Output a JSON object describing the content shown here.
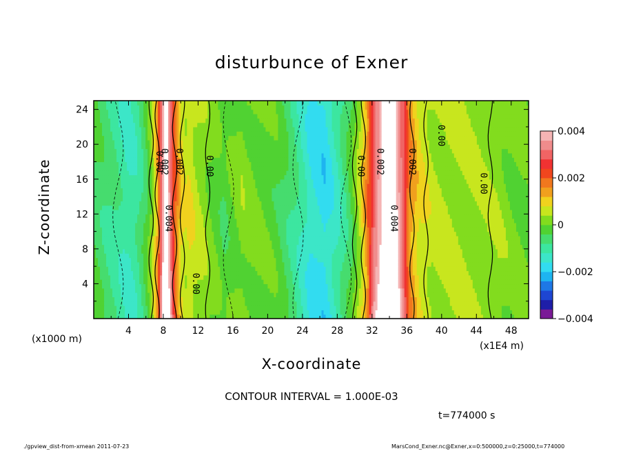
{
  "chart_data": {
    "type": "heatmap",
    "title": "disturbunce of Exner",
    "xlabel": "X-coordinate",
    "ylabel": "Z-coordinate",
    "x_unit_left": "(x1000 m)",
    "x_unit_right": "(x1E4 m)",
    "xlim": [
      0,
      50
    ],
    "ylim": [
      0,
      25
    ],
    "x_ticks": [
      "4",
      "8",
      "12",
      "16",
      "20",
      "24",
      "28",
      "32",
      "36",
      "40",
      "44",
      "48"
    ],
    "y_ticks": [
      "4",
      "8",
      "12",
      "16",
      "20",
      "24"
    ],
    "colorbar": {
      "range": [
        -0.004,
        0.004
      ],
      "tick_labels": [
        "0.004",
        "0.002",
        "0",
        "−0.002",
        "−0.004"
      ],
      "colors": [
        "#7a1a96",
        "#1e1ea8",
        "#1e46d2",
        "#1e78e6",
        "#1eb4f0",
        "#32dcf0",
        "#3ce6c8",
        "#3ce6a0",
        "#46dc6e",
        "#50d232",
        "#82dc1e",
        "#c8e61e",
        "#f0d21e",
        "#f0a01e",
        "#f0781e",
        "#f0461e",
        "#f03232",
        "#f06464",
        "#f08c8c",
        "#f5b4b4"
      ]
    },
    "profile": {
      "x": [
        0,
        2,
        4,
        5,
        6,
        6.8,
        7.4,
        7.9,
        8.3,
        8.7,
        9.2,
        9.8,
        10.5,
        11,
        11.5,
        12.2,
        13,
        15,
        17,
        19,
        21,
        23,
        25,
        26.5,
        28,
        29.5,
        30.5,
        31.3,
        32.2,
        33.2,
        34,
        34.8,
        35.6,
        36.3,
        37.5,
        39,
        42,
        44.5,
        46.5,
        48,
        50
      ],
      "values": [
        -0.0004,
        -0.0008,
        -0.0012,
        -0.001,
        -0.0004,
        0.0004,
        0.0016,
        0.0035,
        0.0045,
        0.0035,
        0.0022,
        0.0012,
        0.0006,
        0.0008,
        0.0006,
        0.0004,
        0.0002,
        -0.0003,
        0.0002,
        0,
        -0.0002,
        -0.0008,
        -0.0016,
        -0.0018,
        -0.0012,
        -0.0004,
        0.0004,
        0.0014,
        0.003,
        0.004,
        0.0045,
        0.004,
        0.0028,
        0.0016,
        0.0008,
        0.0005,
        0.0004,
        0.0003,
        0.0003,
        0.0001,
        0
      ]
    },
    "contour_labels": [
      {
        "text": "0.00",
        "x": 7.2,
        "z": 18
      },
      {
        "text": "0.002",
        "x": 7.8,
        "z": 18
      },
      {
        "text": "0.002",
        "x": 9.5,
        "z": 18
      },
      {
        "text": "0.00",
        "x": 13,
        "z": 17.5
      },
      {
        "text": "0.004",
        "x": 8.3,
        "z": 11.5
      },
      {
        "text": "0.00",
        "x": 11.4,
        "z": 4
      },
      {
        "text": "0.00",
        "x": 30.4,
        "z": 17.5
      },
      {
        "text": "0.002",
        "x": 32.6,
        "z": 18
      },
      {
        "text": "0.002",
        "x": 36.3,
        "z": 18
      },
      {
        "text": "0.004",
        "x": 34.2,
        "z": 11.5
      },
      {
        "text": "0.00",
        "x": 39.6,
        "z": 21
      },
      {
        "text": "0.00",
        "x": 44.5,
        "z": 15.5
      }
    ]
  },
  "contour_interval": "CONTOUR INTERVAL = 1.000E-03",
  "time_label": "t=774000 s",
  "footer_left": "./gpview_dist-from-xmean   2011-07-23",
  "footer_right": "MarsCond_Exner.nc@Exner,x=0:500000,z=0:25000,t=774000"
}
